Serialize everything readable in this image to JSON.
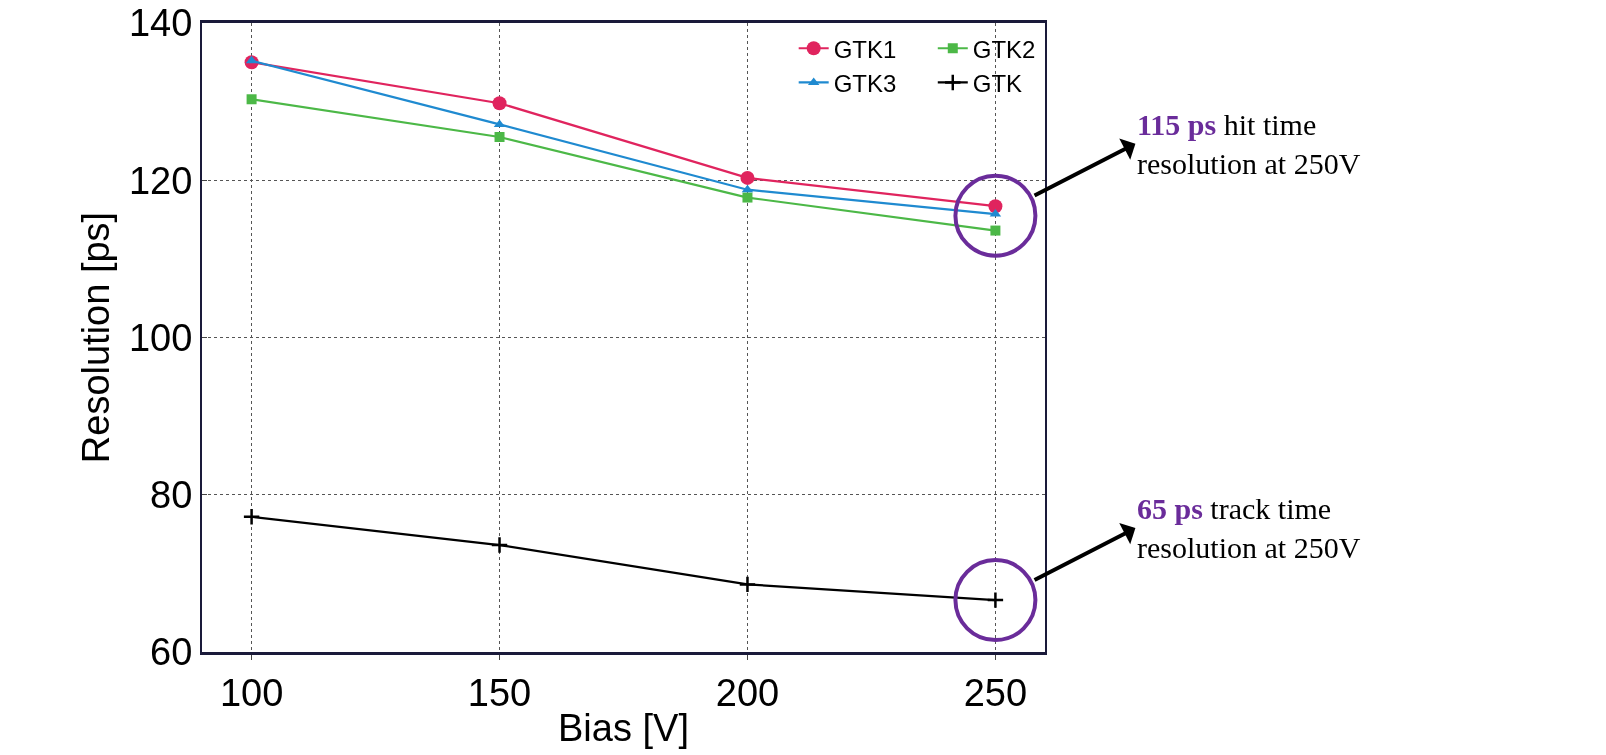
{
  "chart_data": {
    "type": "line",
    "xlabel": "Bias [V]",
    "ylabel": "Resolution [ps]",
    "x": [
      100,
      150,
      200,
      250
    ],
    "series": [
      {
        "name": "GTK1",
        "color": "#e0245e",
        "marker": "circle",
        "values": [
          135.0,
          129.8,
          120.3,
          116.7
        ]
      },
      {
        "name": "GTK2",
        "color": "#4cb847",
        "marker": "square",
        "values": [
          130.3,
          125.5,
          117.8,
          113.6
        ]
      },
      {
        "name": "GTK3",
        "color": "#1f8ad0",
        "marker": "triangle",
        "values": [
          135.2,
          127.1,
          118.8,
          115.7
        ]
      },
      {
        "name": "GTK",
        "color": "#000000",
        "marker": "cross",
        "values": [
          77.2,
          73.6,
          68.6,
          66.6
        ]
      }
    ],
    "xlim": [
      90,
      260
    ],
    "xticks": [
      100,
      150,
      200,
      250
    ],
    "ylim": [
      60,
      140
    ],
    "yticks": [
      60,
      80,
      100,
      120,
      140
    ],
    "grid": true,
    "legend": "top right",
    "annotations": [
      {
        "text": "115 ps hit time\nresolution at 250V",
        "x": 250,
        "y": 115.5
      },
      {
        "text": "65 ps track time\nresolution at 250V",
        "x": 250,
        "y": 66.6
      }
    ]
  }
}
